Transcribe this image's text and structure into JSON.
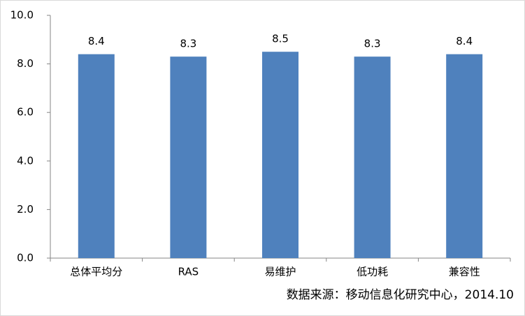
{
  "chart_data": {
    "type": "bar",
    "categories": [
      "总体平均分",
      "RAS",
      "易维护",
      "低功耗",
      "兼容性"
    ],
    "values": [
      8.4,
      8.3,
      8.5,
      8.3,
      8.4
    ],
    "color": "#4f81bd",
    "ylim": [
      0,
      10
    ],
    "yticks": [
      {
        "value": 0,
        "label": "0.0"
      },
      {
        "value": 2,
        "label": "2.0"
      },
      {
        "value": 4,
        "label": "4.0"
      },
      {
        "value": 6,
        "label": "6.0"
      },
      {
        "value": 8,
        "label": "8.0"
      },
      {
        "value": 10,
        "label": "10.0"
      }
    ],
    "grid": false,
    "source": "数据来源：移动信息化研究中心，2014.10"
  }
}
